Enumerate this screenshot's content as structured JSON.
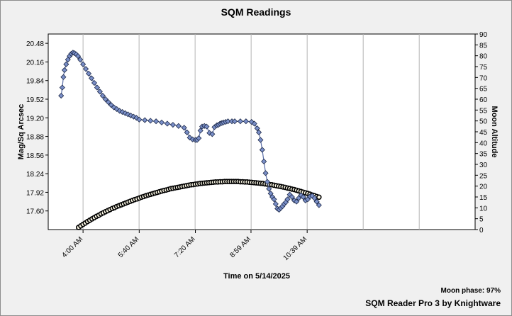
{
  "chart_data": {
    "type": "line",
    "title": "SQM Readings",
    "xlabel": "Time on 5/14/2025",
    "ylabel": "Mag/Sq Arcsec",
    "y2label": "Moon Altitude",
    "x_ticks": [
      "4:00 AM",
      "5:40 AM",
      "7:20 AM",
      "8:59 AM",
      "10:39 AM"
    ],
    "x_tick_minutes": [
      240,
      340,
      440,
      539,
      639
    ],
    "xlim_minutes": [
      178,
      938
    ],
    "ylim": [
      17.28,
      20.64
    ],
    "y_ticks": [
      20.48,
      20.16,
      19.84,
      19.52,
      19.2,
      18.88,
      18.56,
      18.24,
      17.92,
      17.6
    ],
    "y2lim": [
      0,
      90
    ],
    "y2_ticks": [
      90,
      85,
      80,
      75,
      70,
      65,
      60,
      55,
      50,
      45,
      40,
      35,
      30,
      25,
      20,
      15,
      10,
      5,
      0
    ],
    "grid": "vertical",
    "series": [
      {
        "name": "SQM",
        "axis": "left",
        "color": "#5b6fa8",
        "marker": "diamond",
        "x": [
          201,
          203,
          205,
          207,
          210,
          213,
          216,
          219,
          222,
          225,
          228,
          231,
          235,
          240,
          245,
          250,
          255,
          260,
          265,
          270,
          275,
          280,
          285,
          290,
          295,
          300,
          305,
          310,
          315,
          320,
          325,
          330,
          335,
          340,
          350,
          360,
          370,
          380,
          390,
          400,
          410,
          420,
          425,
          430,
          435,
          440,
          443,
          446,
          449,
          452,
          456,
          460,
          465,
          470,
          474,
          478,
          481,
          484,
          487,
          490,
          494,
          498,
          505,
          510,
          520,
          530,
          540,
          545,
          550,
          553,
          556,
          559,
          562,
          565,
          568,
          571,
          574,
          577,
          580,
          583,
          586,
          589,
          592,
          595,
          598,
          601,
          604,
          608,
          612,
          616,
          620,
          624,
          628,
          632,
          636,
          640,
          644,
          648,
          652,
          656,
          660
        ],
        "y": [
          19.58,
          19.72,
          19.9,
          20.02,
          20.12,
          20.2,
          20.26,
          20.3,
          20.32,
          20.31,
          20.29,
          20.26,
          20.2,
          20.12,
          20.04,
          19.96,
          19.88,
          19.8,
          19.72,
          19.65,
          19.58,
          19.52,
          19.47,
          19.42,
          19.38,
          19.35,
          19.32,
          19.3,
          19.28,
          19.26,
          19.24,
          19.22,
          19.2,
          19.17,
          19.16,
          19.15,
          19.14,
          19.12,
          19.1,
          19.08,
          19.06,
          19.03,
          18.95,
          18.86,
          18.83,
          18.82,
          18.82,
          18.85,
          18.98,
          19.05,
          19.06,
          19.05,
          18.94,
          18.92,
          19.04,
          19.07,
          19.08,
          19.1,
          19.11,
          19.12,
          19.13,
          19.14,
          19.14,
          19.14,
          19.14,
          19.14,
          19.13,
          19.1,
          19.02,
          18.95,
          18.82,
          18.65,
          18.45,
          18.25,
          18.1,
          17.98,
          17.9,
          17.84,
          17.8,
          17.72,
          17.64,
          17.62,
          17.65,
          17.68,
          17.72,
          17.75,
          17.8,
          17.88,
          17.84,
          17.78,
          17.76,
          17.82,
          17.87,
          17.84,
          17.78,
          17.8,
          17.85,
          17.86,
          17.82,
          17.76,
          17.7
        ]
      },
      {
        "name": "Moon Altitude",
        "axis": "right",
        "color": "#000000",
        "marker": "circle",
        "x": [
          232,
          236,
          240,
          244,
          248,
          252,
          256,
          260,
          264,
          268,
          272,
          276,
          280,
          284,
          288,
          292,
          296,
          300,
          304,
          308,
          312,
          316,
          320,
          324,
          328,
          332,
          336,
          340,
          344,
          348,
          352,
          356,
          360,
          364,
          368,
          372,
          376,
          380,
          384,
          388,
          392,
          396,
          400,
          404,
          408,
          412,
          416,
          420,
          424,
          428,
          432,
          436,
          440,
          444,
          448,
          452,
          456,
          460,
          464,
          468,
          472,
          476,
          480,
          484,
          488,
          492,
          496,
          500,
          504,
          508,
          512,
          516,
          520,
          524,
          528,
          532,
          536,
          540,
          544,
          548,
          552,
          556,
          560,
          564,
          568,
          572,
          576,
          580,
          584,
          588,
          592,
          596,
          600,
          604,
          608,
          612,
          616,
          620,
          624,
          628,
          632,
          636,
          640,
          644,
          648,
          652,
          656,
          660
        ],
        "y": [
          1.0,
          1.7,
          2.4,
          3.0,
          3.7,
          4.3,
          4.9,
          5.5,
          6.1,
          6.6,
          7.2,
          7.7,
          8.2,
          8.7,
          9.2,
          9.7,
          10.1,
          10.6,
          11.0,
          11.4,
          11.8,
          12.2,
          12.6,
          13.0,
          13.4,
          13.8,
          14.1,
          14.5,
          14.9,
          15.2,
          15.6,
          15.9,
          16.2,
          16.5,
          16.8,
          17.1,
          17.4,
          17.7,
          18.0,
          18.2,
          18.5,
          18.8,
          19.0,
          19.2,
          19.4,
          19.6,
          19.8,
          20.0,
          20.2,
          20.4,
          20.6,
          20.7,
          20.9,
          21.0,
          21.2,
          21.3,
          21.4,
          21.5,
          21.6,
          21.7,
          21.8,
          21.9,
          21.9,
          22.0,
          22.0,
          22.1,
          22.1,
          22.1,
          22.1,
          22.1,
          22.1,
          22.1,
          22.0,
          22.0,
          21.9,
          21.9,
          21.8,
          21.7,
          21.6,
          21.5,
          21.4,
          21.3,
          21.2,
          21.0,
          20.9,
          20.7,
          20.6,
          20.4,
          20.2,
          20.0,
          19.8,
          19.6,
          19.4,
          19.1,
          18.9,
          18.6,
          18.4,
          18.1,
          17.8,
          17.5,
          17.2,
          16.9,
          16.6,
          16.3,
          15.9,
          15.6,
          15.2,
          14.9
        ]
      }
    ]
  },
  "footer": {
    "moon_phase": "Moon phase: 97%",
    "credit": "SQM Reader Pro 3 by Knightware"
  }
}
